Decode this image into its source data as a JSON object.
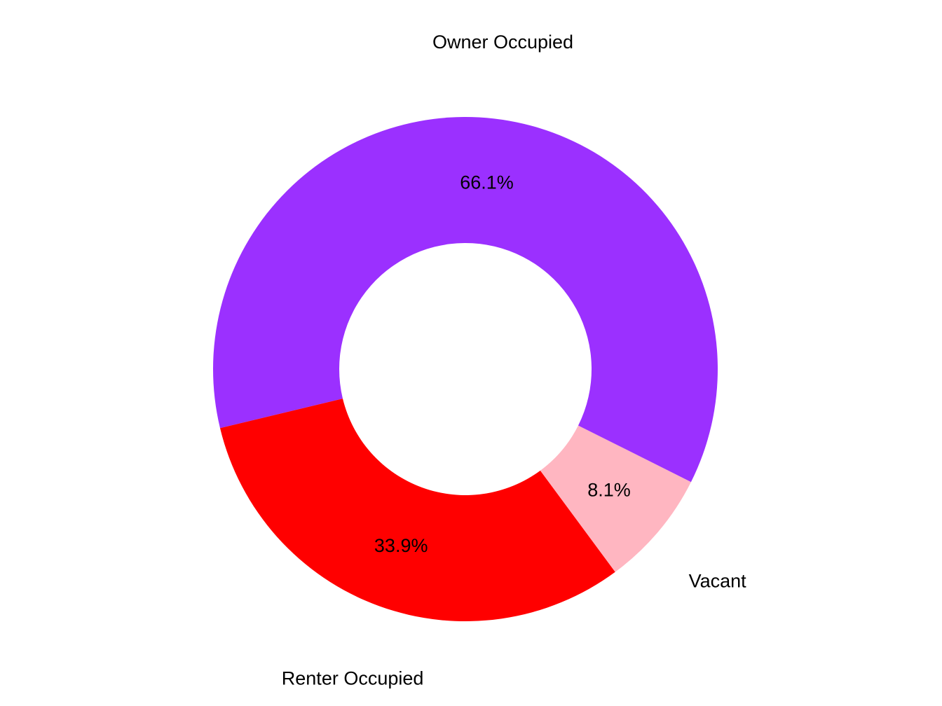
{
  "figure": {
    "background": "#FFFFFF"
  },
  "chart_data": {
    "type": "pie",
    "variant": "donut",
    "title": "",
    "slices": [
      {
        "label": "Owner Occupied",
        "value": 66.1,
        "percent_label": "66.1%",
        "color": "#9B30FF"
      },
      {
        "label": "Renter Occupied",
        "value": 33.9,
        "percent_label": "33.9%",
        "color": "#FF0000"
      },
      {
        "label": "Vacant",
        "value": 8.1,
        "percent_label": "8.1%",
        "color": "#FFB6C1"
      }
    ],
    "start_angle_deg": -26.6,
    "direction": "counterclockwise",
    "inner_radius_ratio": 0.5,
    "legend_position": "none",
    "text_color": "#000000"
  }
}
